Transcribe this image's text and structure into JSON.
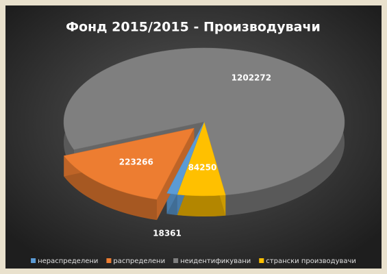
{
  "chart_data": {
    "type": "pie",
    "title": "Фонд 2015/2015 - Производувачи",
    "categories": [
      "нераспределени",
      "распределени",
      "неидентификувани",
      "странски производувачи"
    ],
    "values": [
      18361,
      223266,
      1202272,
      84250
    ],
    "colors": [
      "#5b9bd5",
      "#ed7d31",
      "#7f7f7f",
      "#ffc000"
    ],
    "legend": "bottom"
  }
}
